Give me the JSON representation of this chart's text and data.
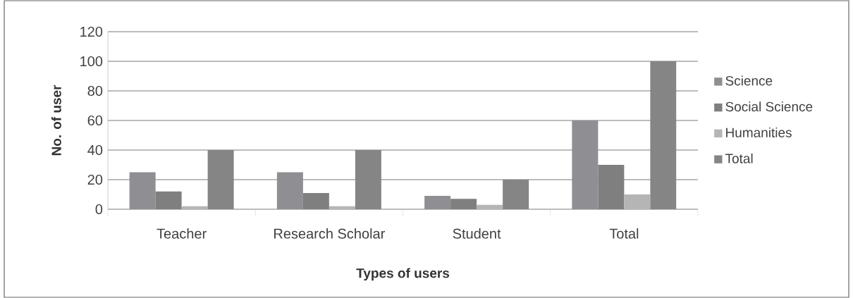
{
  "chart_data": {
    "type": "bar",
    "xlabel": "Types of users",
    "ylabel": "No. of user",
    "categories": [
      "Teacher",
      "Research Scholar",
      "Student",
      "Total"
    ],
    "series": [
      {
        "name": "Science",
        "color": "#8f8f93",
        "values": [
          25,
          25,
          9,
          60
        ]
      },
      {
        "name": "Social Science",
        "color": "#7f7f7f",
        "values": [
          12,
          11,
          7,
          30
        ]
      },
      {
        "name": "Humanities",
        "color": "#b5b5b5",
        "values": [
          2,
          2,
          3,
          10
        ]
      },
      {
        "name": "Total",
        "color": "#858585",
        "values": [
          40,
          40,
          20,
          100
        ]
      }
    ],
    "ylim": [
      0,
      120
    ],
    "yticks": [
      0,
      20,
      40,
      60,
      80,
      100,
      120
    ],
    "grid": "y",
    "legend": "right"
  }
}
